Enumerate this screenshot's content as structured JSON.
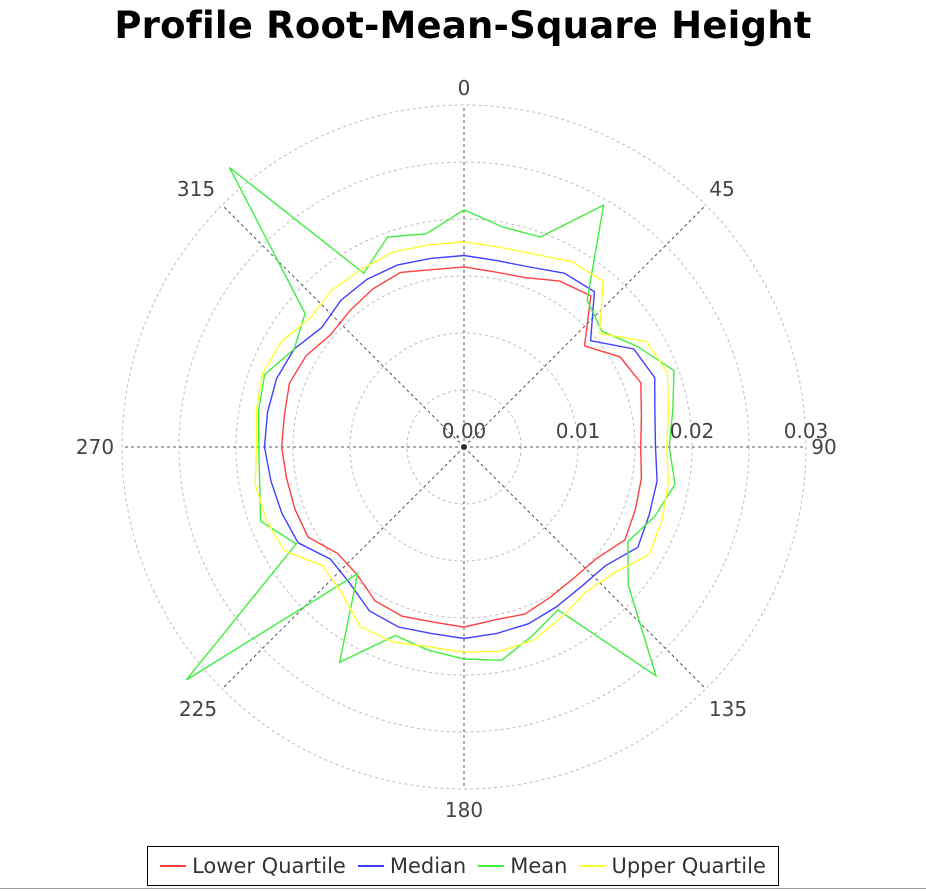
{
  "chart_data": {
    "type": "polar-line",
    "title": "Profile Root-Mean-Square Height",
    "angle_unit": "degrees",
    "angle_tick_labels": [
      "0",
      "45",
      "90",
      "135",
      "180",
      "225",
      "270",
      "315"
    ],
    "radial_tick_labels": [
      "0.00",
      "0.01",
      "0.02",
      "0.03"
    ],
    "radial_range": [
      0,
      0.03
    ],
    "grid": true,
    "legend_position": "bottom",
    "angles": [
      0,
      10,
      20,
      30,
      40,
      50,
      60,
      70,
      80,
      90,
      100,
      110,
      120,
      130,
      140,
      150,
      160,
      170,
      180,
      190,
      200,
      210,
      220,
      230,
      240,
      250,
      260,
      270,
      280,
      290,
      300,
      310,
      320,
      330,
      340,
      350
    ],
    "series": [
      {
        "name": "Lower Quartile",
        "color": "#ff4040",
        "values": [
          0.0158,
          0.0156,
          0.0158,
          0.0168,
          0.0173,
          0.0138,
          0.0158,
          0.0165,
          0.0158,
          0.0155,
          0.0158,
          0.016,
          0.0163,
          0.0152,
          0.015,
          0.0152,
          0.0156,
          0.0154,
          0.0158,
          0.0156,
          0.0158,
          0.0156,
          0.0146,
          0.0145,
          0.0158,
          0.0158,
          0.0158,
          0.016,
          0.016,
          0.0163,
          0.016,
          0.0153,
          0.0156,
          0.016,
          0.0163,
          0.0158
        ]
      },
      {
        "name": "Median",
        "color": "#4040ff",
        "values": [
          0.0168,
          0.0166,
          0.0168,
          0.0176,
          0.0178,
          0.0145,
          0.0172,
          0.0178,
          0.017,
          0.0168,
          0.0172,
          0.0173,
          0.0176,
          0.0162,
          0.016,
          0.0162,
          0.0165,
          0.0166,
          0.0168,
          0.0166,
          0.0168,
          0.0166,
          0.0156,
          0.0153,
          0.0168,
          0.017,
          0.0172,
          0.0175,
          0.0175,
          0.0175,
          0.0172,
          0.0163,
          0.0168,
          0.017,
          0.017,
          0.0168
        ]
      },
      {
        "name": "Mean",
        "color": "#40ee40",
        "values": [
          0.0208,
          0.0196,
          0.0196,
          0.0245,
          0.0168,
          0.0158,
          0.0176,
          0.0196,
          0.0186,
          0.018,
          0.0188,
          0.0178,
          0.0166,
          0.0188,
          0.0262,
          0.0165,
          0.0176,
          0.019,
          0.0186,
          0.0181,
          0.0176,
          0.0218,
          0.0145,
          0.0318,
          0.017,
          0.019,
          0.0182,
          0.018,
          0.0183,
          0.0186,
          0.0172,
          0.0182,
          0.032,
          0.0176,
          0.0196,
          0.019
        ]
      },
      {
        "name": "Upper Quartile",
        "color": "#ffff30",
        "values": [
          0.018,
          0.0178,
          0.018,
          0.0188,
          0.019,
          0.0155,
          0.0185,
          0.019,
          0.0182,
          0.0178,
          0.0182,
          0.0185,
          0.0188,
          0.0172,
          0.0166,
          0.0172,
          0.018,
          0.0182,
          0.018,
          0.0178,
          0.0182,
          0.0182,
          0.0167,
          0.0162,
          0.0182,
          0.0185,
          0.0186,
          0.0182,
          0.0185,
          0.0188,
          0.0185,
          0.0176,
          0.018,
          0.018,
          0.0182,
          0.018
        ]
      }
    ]
  }
}
